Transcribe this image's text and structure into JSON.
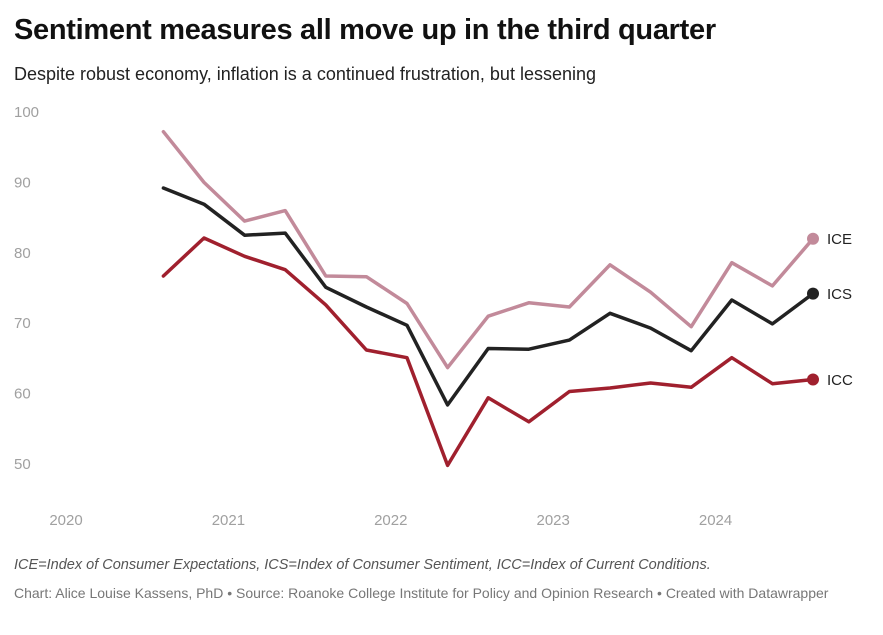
{
  "header": {
    "title": "Sentiment measures all move up in the third quarter",
    "subtitle": "Despite robust economy, inflation is a continued frustration, but lessening"
  },
  "footer": {
    "note": "ICE=Index of Consumer Expectations, ICS=Index of Consumer Sentiment, ICC=Index of Current Conditions.",
    "byline": "Chart: Alice Louise Kassens, PhD • Source: Roanoke College Institute for Policy and Opinion Research • Created with Datawrapper"
  },
  "chart_data": {
    "type": "line",
    "title": "Sentiment measures all move up in the third quarter",
    "xlabel": "",
    "ylabel": "",
    "xlim": [
      2020,
      2024.85
    ],
    "ylim": [
      45,
      100
    ],
    "x_ticks": [
      "2020",
      "2021",
      "2022",
      "2023",
      "2024"
    ],
    "y_ticks": [
      "100",
      "90",
      "80",
      "70",
      "60",
      "50"
    ],
    "grid": false,
    "legend": "direct labels at line ends (right)",
    "x": [
      2020.6,
      2020.85,
      2021.1,
      2021.35,
      2021.6,
      2021.85,
      2022.1,
      2022.35,
      2022.6,
      2022.85,
      2023.1,
      2023.35,
      2023.6,
      2023.85,
      2024.1,
      2024.35,
      2024.6
    ],
    "series": [
      {
        "name": "ICE",
        "color": "#c28a9a",
        "values": [
          97.2,
          90.0,
          84.5,
          86.0,
          76.7,
          76.6,
          72.8,
          63.7,
          71.0,
          72.9,
          72.3,
          78.3,
          74.4,
          69.5,
          78.6,
          75.3,
          82.0
        ]
      },
      {
        "name": "ICS",
        "color": "#222222",
        "values": [
          89.2,
          86.9,
          82.5,
          82.8,
          75.1,
          72.3,
          69.7,
          58.4,
          66.4,
          66.3,
          67.6,
          71.4,
          69.3,
          66.1,
          73.3,
          69.9,
          74.2
        ]
      },
      {
        "name": "ICC",
        "color": "#a0202e",
        "values": [
          76.7,
          82.1,
          79.5,
          77.6,
          72.6,
          66.2,
          65.1,
          49.8,
          59.4,
          56.0,
          60.3,
          60.8,
          61.5,
          60.9,
          65.1,
          61.4,
          62.0
        ]
      }
    ]
  }
}
